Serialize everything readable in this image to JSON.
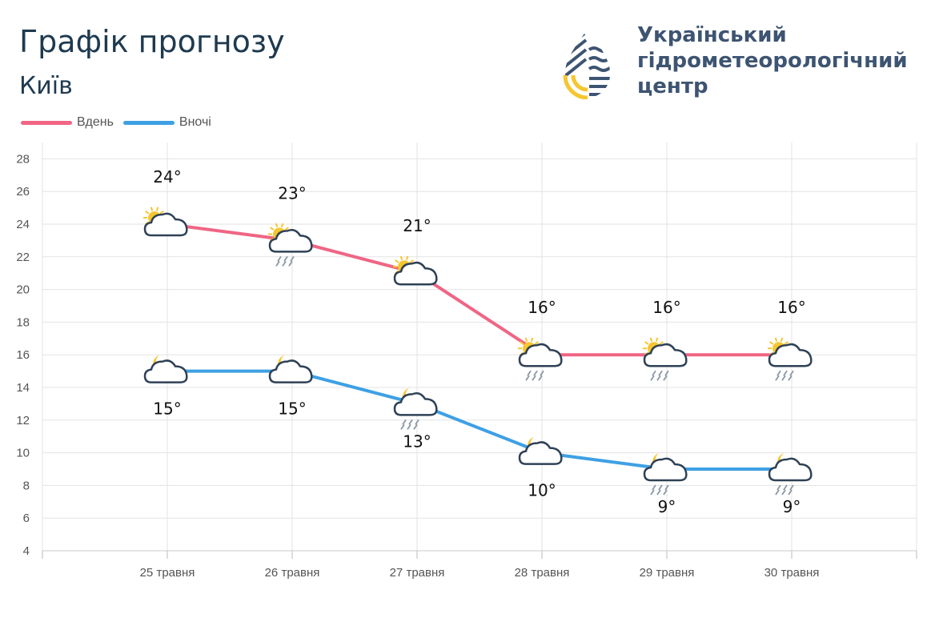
{
  "header": {
    "title": "Графік прогнозу",
    "city": "Київ"
  },
  "logo": {
    "line1": "Український",
    "line2": "гідрометеорологічний",
    "line3": "центр"
  },
  "colors": {
    "day": "#f06584",
    "night": "#3ea0e4"
  },
  "chart_data": {
    "type": "line",
    "categories": [
      "25 травня",
      "26 травня",
      "27 травня",
      "28 травня",
      "29 травня",
      "30 травня"
    ],
    "series": [
      {
        "name": "Вдень",
        "values": [
          24,
          23,
          21,
          16,
          16,
          16
        ],
        "labels": [
          "24°",
          "23°",
          "21°",
          "16°",
          "16°",
          "16°"
        ],
        "icons": [
          "sun-cloud-icon",
          "sun-cloud-rain-icon",
          "sun-cloud-icon",
          "sun-cloud-rain-icon",
          "sun-cloud-rain-icon",
          "sun-cloud-rain-icon"
        ]
      },
      {
        "name": "Вночі",
        "values": [
          15,
          15,
          13,
          10,
          9,
          9
        ],
        "labels": [
          "15°",
          "15°",
          "13°",
          "10°",
          "9°",
          "9°"
        ],
        "icons": [
          "moon-cloud-icon",
          "moon-cloud-icon",
          "moon-cloud-rain-icon",
          "moon-cloud-icon",
          "moon-cloud-rain-icon",
          "moon-cloud-rain-icon"
        ]
      }
    ],
    "y_ticks": [
      "4",
      "6",
      "8",
      "10",
      "12",
      "14",
      "16",
      "18",
      "20",
      "22",
      "24",
      "26",
      "28"
    ],
    "ylim": [
      4,
      29
    ],
    "grid": true,
    "legend": "top-left"
  }
}
